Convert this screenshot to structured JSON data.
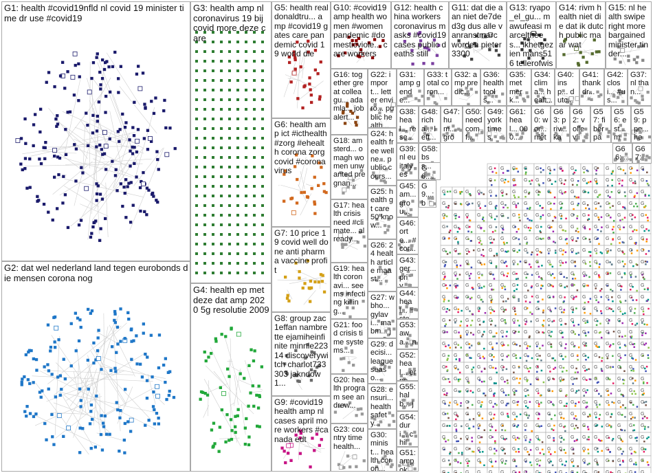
{
  "groups": [
    {
      "id": "G1",
      "label": "G1: health #covid19nfld nl covid 19 minister time dr use #covid19",
      "color": "#1a1a6b",
      "kind": "cluster",
      "fs": 13
    },
    {
      "id": "G2",
      "label": "G2: dat wel nederland land tegen eurobonds die mensen corona nog",
      "color": "#1f77c8",
      "kind": "cluster",
      "fs": 13
    },
    {
      "id": "G3",
      "label": "G3: health amp nl coronavirus 19 bij covid more deze care",
      "color": "#2e7d32",
      "kind": "grid",
      "fs": 13
    },
    {
      "id": "G4",
      "label": "G4: health ep met deze dat amp 2020 5g resolutie 2009",
      "color": "#22a83a",
      "kind": "cluster",
      "fs": 13
    },
    {
      "id": "G5",
      "label": "G5: health realdonaldtru... amp #covid19 gates care pandemic covid 19 world die",
      "color": "#b22222",
      "kind": "cluster",
      "fs": 12
    },
    {
      "id": "G6",
      "label": "G6: health amp ict #icthealth #zorg #ehealth corona zorg covid #coronavirus",
      "color": "#d2691e",
      "kind": "cluster",
      "fs": 12
    },
    {
      "id": "G7",
      "label": "G7: 10 price 19 covid well done anti pharma vaccine profit",
      "color": "#d4a017",
      "kind": "cluster",
      "fs": 12
    },
    {
      "id": "G8",
      "label": "G8: group zac1effan nambrette ejamiheinfinite minnie22314 discoverywitch charlot733303 jakndow1...",
      "color": "#6b6b6b",
      "kind": "cluster",
      "fs": 12
    },
    {
      "id": "G9",
      "label": "G9: #covid19 health amp nl cases april more workers #canada edt",
      "color": "#c71585",
      "kind": "cluster",
      "fs": 12
    },
    {
      "id": "G10",
      "label": "G10: #covid19 amp health women #women pandemic #domesticviole... care workers",
      "color": "#8b0000",
      "kind": "cluster",
      "fs": 12
    },
    {
      "id": "G11",
      "label": "G11: dat die aan niet de7ded3g dus alle vanranstmarc worden pieter3300",
      "color": "#444444",
      "kind": "cluster",
      "fs": 12
    },
    {
      "id": "G12",
      "label": "G12: health china workers coronavirus masks #covid19 cases public deaths still",
      "color": "#7b3fa0",
      "kind": "cluster",
      "fs": 12
    },
    {
      "id": "G13",
      "label": "G13: ryapo_el_gu... mawufeasi marcelthees... ikhetgezien mans516 tellerofwisd...",
      "color": "#333333",
      "kind": "cluster",
      "fs": 12
    },
    {
      "id": "G14",
      "label": "G14: rivm health niet die dat ik dutch public maar wat",
      "color": "#556b2f",
      "kind": "cluster",
      "fs": 12
    },
    {
      "id": "G15",
      "label": "G15: nl health swipe right more bargained minister tinder...",
      "color": "#888888",
      "kind": "cluster",
      "fs": 12
    },
    {
      "id": "G16",
      "label": "G16: together great colleagu... adamla... job alert...",
      "color": "#8b4513",
      "kind": "cluster",
      "fs": 11
    },
    {
      "id": "G17",
      "label": "G17: health crisis need #climate... already...",
      "color": "#999999",
      "kind": "cluster",
      "fs": 11
    },
    {
      "id": "G18",
      "label": "G18: amsterd... omagh women unwanted pregnan...",
      "color": "#999999",
      "kind": "cluster",
      "fs": 11
    },
    {
      "id": "G19",
      "label": "G19: health coronavi... seems infecting killing...",
      "color": "#999999",
      "kind": "cluster",
      "fs": 11
    },
    {
      "id": "G20",
      "label": "G20: health program see andrew...",
      "color": "#999999",
      "kind": "cluster",
      "fs": 11
    },
    {
      "id": "G21",
      "label": "G21: food crisis time systems...",
      "color": "#999999",
      "kind": "cluster",
      "fs": 11
    },
    {
      "id": "G22",
      "label": "G22: import... letter enviro... public health...",
      "color": "#999999",
      "kind": "cluster",
      "fs": 11
    },
    {
      "id": "G23",
      "label": "G23: country time health...",
      "color": "#999999",
      "kind": "cluster",
      "fs": 11
    },
    {
      "id": "G24",
      "label": "G24: health free wellne... public cours...",
      "color": "#999999",
      "kind": "cluster",
      "fs": 11
    },
    {
      "id": "G25",
      "label": "G25: health gt care 50 know...",
      "color": "#999999",
      "kind": "cluster",
      "fs": 11
    },
    {
      "id": "G26",
      "label": "G26: 24 health article maast...",
      "color": "#999999",
      "kind": "cluster",
      "fs": 11
    },
    {
      "id": "G27",
      "label": "G27: wbho... gylavi... mabm... jozefi...",
      "color": "#999999",
      "kind": "cluster",
      "fs": 11
    },
    {
      "id": "G28",
      "label": "G28: ensuri... health safety...",
      "color": "#999999",
      "kind": "cluster",
      "fs": 11
    },
    {
      "id": "G29",
      "label": "G29: decisi... league seaso...",
      "color": "#999999",
      "kind": "cluster",
      "fs": 11
    },
    {
      "id": "G30",
      "label": "G30: minist... health coron...",
      "color": "#999999",
      "kind": "cluster",
      "fs": 11
    },
    {
      "id": "G31",
      "label": "G31: amp gende...",
      "color": "#999999",
      "kind": "cluster",
      "fs": 11
    },
    {
      "id": "G32",
      "label": "G32: amp predic...",
      "color": "#999999",
      "kind": "cluster",
      "fs": 11
    },
    {
      "id": "G33",
      "label": "G33: total coron...",
      "color": "#999999",
      "kind": "cluster",
      "fs": 11
    },
    {
      "id": "G34",
      "label": "G34: clima... healt...",
      "color": "#999999",
      "kind": "cluster",
      "fs": 11
    },
    {
      "id": "G35",
      "label": "G35: met merk...",
      "color": "#999999",
      "kind": "cluster",
      "fs": 11
    },
    {
      "id": "G36",
      "label": "G36: health tools...",
      "color": "#999999",
      "kind": "cluster",
      "fs": 11
    },
    {
      "id": "G37",
      "label": "G37: nl than...",
      "color": "#999999",
      "kind": "cluster",
      "fs": 11
    },
    {
      "id": "G38",
      "label": "G38: heal... rese... hu...",
      "color": "#999999",
      "kind": "cluster",
      "fs": 11
    },
    {
      "id": "G39",
      "label": "G39: nl eu italy esm...",
      "color": "#999999",
      "kind": "cluster",
      "fs": 11
    },
    {
      "id": "G40",
      "label": "G40: insp... dutc...",
      "color": "#999999",
      "kind": "cluster",
      "fs": 11
    },
    {
      "id": "G41",
      "label": "G41: thank dr...",
      "color": "#999999",
      "kind": "cluster",
      "fs": 11
    },
    {
      "id": "G42",
      "label": "G42: closi... #us...",
      "color": "#999999",
      "kind": "cluster",
      "fs": 11
    },
    {
      "id": "G43",
      "label": "G43: ger... priv...",
      "color": "#999999",
      "kind": "cluster",
      "fs": 11
    },
    {
      "id": "G44",
      "label": "G44: heal... liste...",
      "color": "#999999",
      "kind": "cluster",
      "fs": 11
    },
    {
      "id": "G45",
      "label": "G45: am... grou...",
      "color": "#999999",
      "kind": "cluster",
      "fs": 11
    },
    {
      "id": "G46",
      "label": "G46: orte... #cor...",
      "color": "#999999",
      "kind": "cluster",
      "fs": 11
    },
    {
      "id": "G47",
      "label": "G47: hum... gron...",
      "color": "#999999",
      "kind": "cluster",
      "fs": 11
    },
    {
      "id": "G48",
      "label": "G48: richa... left...",
      "color": "#999999",
      "kind": "cluster",
      "fs": 11
    },
    {
      "id": "G49",
      "label": "G49: york times",
      "color": "#999999",
      "kind": "cluster",
      "fs": 11
    },
    {
      "id": "G50",
      "label": "G50: need comf...",
      "color": "#999999",
      "kind": "cluster",
      "fs": 11
    },
    {
      "id": "G51",
      "label": "G51: amp ok...",
      "color": "#999999",
      "kind": "cluster",
      "fs": 11
    },
    {
      "id": "G52",
      "label": "G52: heal... erne...",
      "color": "#999999",
      "kind": "cluster",
      "fs": 11
    },
    {
      "id": "G53",
      "label": "G53: awa... nynk...",
      "color": "#999999",
      "kind": "cluster",
      "fs": 11
    },
    {
      "id": "G54",
      "label": "G54: duri... child...",
      "color": "#999999",
      "kind": "cluster",
      "fs": 11
    },
    {
      "id": "G55",
      "label": "G55: halb... jaap...",
      "color": "#999999",
      "kind": "cluster",
      "fs": 11
    },
    {
      "id": "G56",
      "label": "G56: est... me...",
      "color": "#999999",
      "kind": "cluster",
      "fs": 11
    },
    {
      "id": "G57",
      "label": "G57: fiber par...",
      "color": "#999999",
      "kind": "cluster",
      "fs": 11
    },
    {
      "id": "G58",
      "label": "G58: bss...",
      "color": "#999999",
      "kind": "cluster",
      "fs": 11
    },
    {
      "id": "G59",
      "label": "G59: ppe... hea...",
      "color": "#999999",
      "kind": "cluster",
      "fs": 11
    },
    {
      "id": "G60",
      "label": "G60: wor... niet",
      "color": "#999999",
      "kind": "cluster",
      "fs": 11
    },
    {
      "id": "G61",
      "label": "G61: heal... 000...",
      "color": "#999999",
      "kind": "cluster",
      "fs": 11
    },
    {
      "id": "G62",
      "label": "G62: volle vlie...",
      "color": "#999999",
      "kind": "cluster",
      "fs": 11
    },
    {
      "id": "G63",
      "label": "G63: priv... kar...",
      "color": "#999999",
      "kind": "cluster",
      "fs": 11
    },
    {
      "id": "G64",
      "label": "G6...: ampple...",
      "color": "#999999",
      "kind": "cluster",
      "fs": 11
    },
    {
      "id": "G65",
      "label": "G9...: bb...",
      "color": "#999999",
      "kind": "cluster",
      "fs": 11
    },
    {
      "id": "G66",
      "label": "G66: ... liof",
      "color": "#999999",
      "kind": "cluster",
      "fs": 11
    },
    {
      "id": "G67",
      "label": "G67: ...",
      "color": "#999999",
      "kind": "cluster",
      "fs": 11
    }
  ]
}
